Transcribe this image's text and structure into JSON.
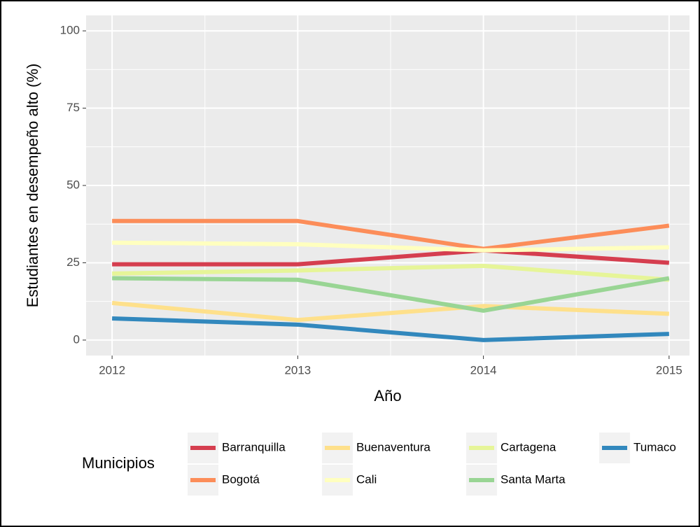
{
  "chart_data": {
    "type": "line",
    "x_label": "Año",
    "y_label": "Estudiantes en desempeño alto (%)",
    "legend_title": "Municipios",
    "x": [
      2012,
      2013,
      2014,
      2015
    ],
    "xlim": [
      2011.86,
      2015.11
    ],
    "xticks": [
      2012,
      2013,
      2014,
      2015
    ],
    "ylim": [
      -5,
      105
    ],
    "yticks": [
      0,
      25,
      50,
      75,
      100
    ],
    "grid": true,
    "legend_position": "bottom",
    "series": [
      {
        "name": "Barranquilla",
        "color": "#d53e4f",
        "values": [
          24.5,
          24.5,
          29,
          25
        ]
      },
      {
        "name": "Bogotá",
        "color": "#fc8d59",
        "values": [
          38.5,
          38.5,
          29.5,
          37
        ]
      },
      {
        "name": "Buenaventura",
        "color": "#fee08b",
        "values": [
          12,
          6.5,
          11,
          8.5
        ]
      },
      {
        "name": "Cali",
        "color": "#ffffbf",
        "values": [
          31.5,
          31,
          29,
          30
        ]
      },
      {
        "name": "Cartagena",
        "color": "#e6f598",
        "values": [
          21.5,
          22.5,
          24,
          19.5
        ]
      },
      {
        "name": "Santa Marta",
        "color": "#99d594",
        "values": [
          20,
          19.5,
          9.5,
          20
        ]
      },
      {
        "name": "Tumaco",
        "color": "#3288bd",
        "values": [
          7,
          5,
          0,
          2
        ]
      }
    ]
  }
}
